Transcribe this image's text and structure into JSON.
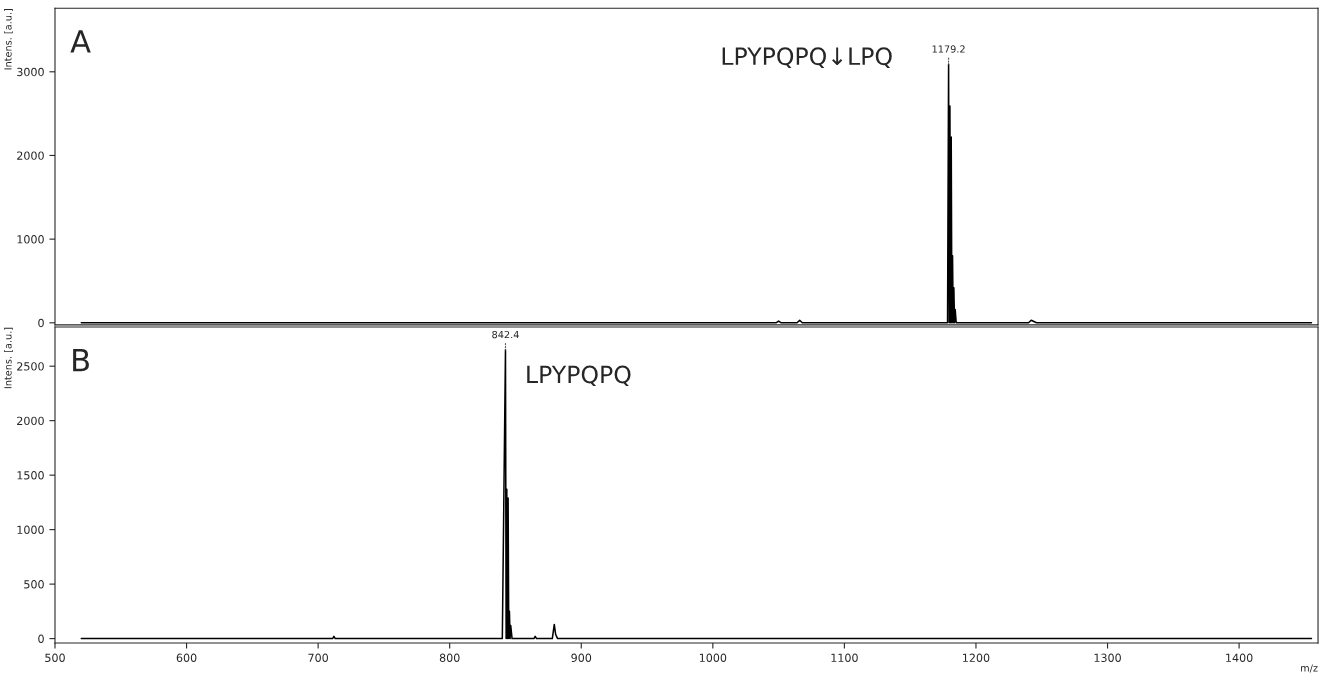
{
  "chart_data": [
    {
      "type": "line",
      "ylabel": "Intens. [a.u.]",
      "xlim": [
        500,
        1460
      ],
      "ylim": [
        -25,
        3760
      ],
      "yticks": [
        0,
        1000,
        2000,
        3000
      ],
      "tick_labels": "y",
      "grid": false,
      "legend": false,
      "x": [
        520,
        700,
        810,
        1000,
        1048,
        1050,
        1052,
        1064,
        1066,
        1068,
        1178.4,
        1179.2,
        1179.7,
        1180.2,
        1180.7,
        1181.2,
        1181.7,
        1182.2,
        1182.7,
        1183.2,
        1183.7,
        1184.2,
        1185,
        1240,
        1242,
        1244,
        1246,
        1455
      ],
      "series": [
        {
          "color": "#000000",
          "values": [
            0,
            0,
            0,
            0,
            0,
            20,
            0,
            0,
            30,
            0,
            0,
            3090,
            0,
            2590,
            0,
            2220,
            0,
            800,
            0,
            420,
            0,
            160,
            0,
            0,
            30,
            15,
            0,
            0
          ]
        }
      ],
      "annotations": [
        "A",
        "LPYPQPQ↓LPQ",
        {
          "text": "1179.2",
          "x": 1179.2,
          "y": 3090
        }
      ]
    },
    {
      "type": "line",
      "ylabel": "Intens. [a.u.]",
      "xlabel": "m/z",
      "xlim": [
        500,
        1460
      ],
      "xticks": [
        500,
        600,
        700,
        800,
        900,
        1000,
        1100,
        1200,
        1300,
        1400
      ],
      "ylim": [
        -40,
        2860
      ],
      "yticks": [
        0,
        500,
        1000,
        1500,
        2000,
        2500
      ],
      "grid": false,
      "legend": false,
      "x": [
        520,
        600,
        711,
        712,
        713,
        840,
        842.4,
        842.9,
        843.4,
        843.9,
        844.4,
        844.9,
        845.4,
        845.9,
        846.4,
        847.4,
        864,
        865,
        866,
        878,
        879.5,
        880.5,
        882,
        1100,
        1455
      ],
      "series": [
        {
          "color": "#000000",
          "values": [
            0,
            0,
            0,
            20,
            0,
            0,
            2650,
            0,
            1370,
            0,
            1290,
            0,
            250,
            0,
            120,
            0,
            0,
            20,
            0,
            0,
            130,
            40,
            0,
            0,
            0
          ]
        }
      ],
      "annotations": [
        "B",
        "LPYPQPQ",
        {
          "text": "842.4",
          "x": 842.4,
          "y": 2650
        }
      ]
    }
  ]
}
